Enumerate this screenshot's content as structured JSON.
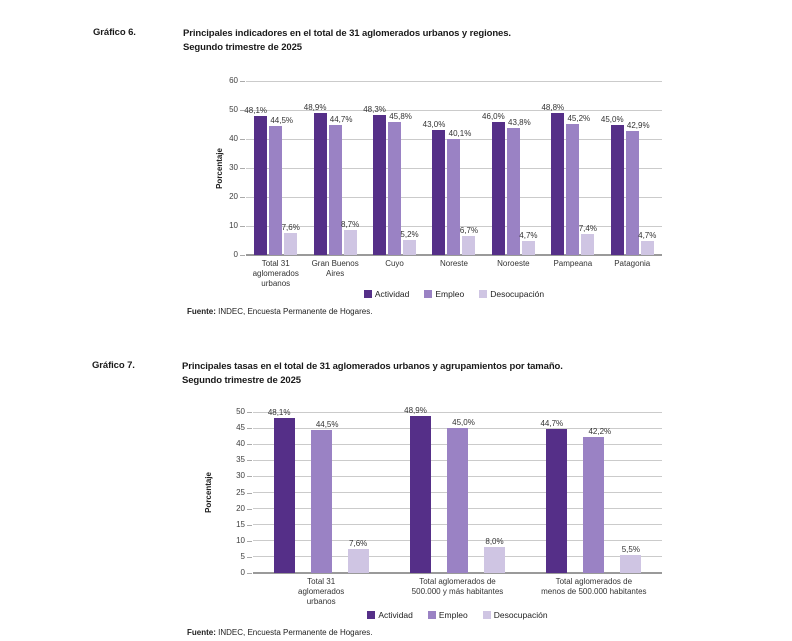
{
  "colors": {
    "actividad": "#552F88",
    "empleo": "#9A82C4",
    "desocupacion": "#CFC5E3",
    "gridline": "#cbcbcb",
    "baseline": "#9a9a9a"
  },
  "g6": {
    "label": "Gráfico 6.",
    "title1": "Principales indicadores en el total de 31 aglomerados urbanos y regiones.",
    "title2": "Segundo trimestre de 2025",
    "fuente_label": "Fuente:",
    "fuente_text": " INDEC, Encuesta Permanente de Hogares."
  },
  "g7": {
    "label": "Gráfico 7.",
    "title1": "Principales tasas en el total de 31 aglomerados urbanos y agrupamientos por tamaño.",
    "title2": "Segundo trimestre de 2025",
    "fuente_label": "Fuente:",
    "fuente_text": " INDEC, Encuesta Permanente de Hogares."
  },
  "chart_data": [
    {
      "id": "chart-g6",
      "type": "bar",
      "title": "Principales indicadores en el total de 31 aglomerados urbanos y regiones. Segundo trimestre de 2025",
      "xlabel": "",
      "ylabel": "Porcentaje",
      "ylim": [
        0,
        60
      ],
      "ytick_step": 10,
      "grid": true,
      "legend_position": "bottom",
      "categories": [
        "Total 31\naglomerados\nurbanos",
        "Gran Buenos\nAires",
        "Cuyo",
        "Noreste",
        "Noroeste",
        "Pampeana",
        "Patagonia"
      ],
      "series": [
        {
          "name": "Actividad",
          "color_key": "actividad",
          "values": [
            48.1,
            48.9,
            48.3,
            43.0,
            46.0,
            48.8,
            45.0
          ],
          "labels": [
            "48,1%",
            "48,9%",
            "48,3%",
            "43,0%",
            "46,0%",
            "48,8%",
            "45,0%"
          ]
        },
        {
          "name": "Empleo",
          "color_key": "empleo",
          "values": [
            44.5,
            44.7,
            45.8,
            40.1,
            43.8,
            45.2,
            42.9
          ],
          "labels": [
            "44,5%",
            "44,7%",
            "45,8%",
            "40,1%",
            "43,8%",
            "45,2%",
            "42,9%"
          ]
        },
        {
          "name": "Desocupación",
          "color_key": "desocupacion",
          "values": [
            7.6,
            8.7,
            5.2,
            6.7,
            4.7,
            7.4,
            4.7
          ],
          "labels": [
            "7,6%",
            "8,7%",
            "5,2%",
            "6,7%",
            "4,7%",
            "7,4%",
            "4,7%"
          ]
        }
      ],
      "legend": [
        "Actividad",
        "Empleo",
        "Desocupación"
      ]
    },
    {
      "id": "chart-g7",
      "type": "bar",
      "title": "Principales tasas en el total de 31 aglomerados urbanos y agrupamientos por tamaño. Segundo trimestre de 2025",
      "xlabel": "",
      "ylabel": "Porcentaje",
      "ylim": [
        0,
        50
      ],
      "ytick_step": 5,
      "grid": true,
      "legend_position": "bottom",
      "categories": [
        "Total 31\naglomerados\nurbanos",
        "Total aglomerados de\n500.000 y más habitantes",
        "Total aglomerados de\nmenos de 500.000 habitantes"
      ],
      "series": [
        {
          "name": "Actividad",
          "color_key": "actividad",
          "values": [
            48.1,
            48.9,
            44.7
          ],
          "labels": [
            "48,1%",
            "48,9%",
            "44,7%"
          ]
        },
        {
          "name": "Empleo",
          "color_key": "empleo",
          "values": [
            44.5,
            45.0,
            42.2
          ],
          "labels": [
            "44,5%",
            "45,0%",
            "42,2%"
          ]
        },
        {
          "name": "Desocupación",
          "color_key": "desocupacion",
          "values": [
            7.6,
            8.0,
            5.5
          ],
          "labels": [
            "7,6%",
            "8,0%",
            "5,5%"
          ]
        }
      ],
      "legend": [
        "Actividad",
        "Empleo",
        "Desocupación"
      ]
    }
  ]
}
